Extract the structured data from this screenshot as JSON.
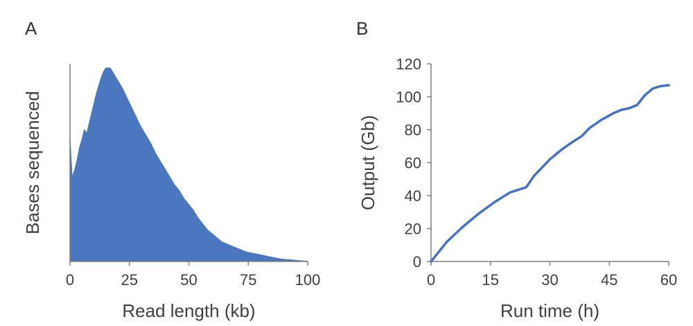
{
  "panels": {
    "a_label": "A",
    "b_label": "B"
  },
  "colors": {
    "bar": "#4a77bf",
    "line": "#4472c4",
    "axis": "#7f7f7f",
    "text": "#404040"
  },
  "chart_data": [
    {
      "type": "area",
      "xlabel": "Read length (kb)",
      "ylabel": "Bases sequenced",
      "xlim": [
        0,
        100
      ],
      "xticks": [
        0,
        25,
        50,
        75,
        100
      ],
      "yticks": [],
      "ylim": [
        0,
        1
      ],
      "grid": false,
      "series": [
        {
          "x": [
            0,
            0.5,
            1,
            2,
            3,
            4,
            5,
            6,
            7,
            8,
            9,
            10,
            11,
            12,
            13,
            14,
            15,
            16,
            17,
            18,
            19,
            20,
            22,
            24,
            26,
            28,
            30,
            32,
            34,
            36,
            38,
            40,
            42,
            44,
            46,
            48,
            50,
            52,
            54,
            56,
            58,
            60,
            62,
            64,
            66,
            68,
            70,
            72,
            74,
            76,
            78,
            80,
            82,
            84,
            86,
            88,
            90,
            92,
            94,
            96,
            98,
            100
          ],
          "values": [
            0.65,
            0.53,
            0.43,
            0.47,
            0.52,
            0.58,
            0.62,
            0.67,
            0.65,
            0.7,
            0.75,
            0.8,
            0.85,
            0.89,
            0.93,
            0.96,
            0.98,
            0.98,
            0.98,
            0.96,
            0.94,
            0.92,
            0.88,
            0.83,
            0.78,
            0.73,
            0.68,
            0.64,
            0.6,
            0.55,
            0.51,
            0.47,
            0.43,
            0.39,
            0.36,
            0.32,
            0.29,
            0.26,
            0.22,
            0.19,
            0.16,
            0.14,
            0.12,
            0.1,
            0.09,
            0.08,
            0.07,
            0.06,
            0.05,
            0.045,
            0.04,
            0.035,
            0.03,
            0.025,
            0.02,
            0.015,
            0.012,
            0.01,
            0.008,
            0.006,
            0.004,
            0.002
          ]
        }
      ]
    },
    {
      "type": "line",
      "xlabel": "Run time (h)",
      "ylabel": "Output (Gb)",
      "xlim": [
        0,
        60
      ],
      "ylim": [
        0,
        120
      ],
      "xticks": [
        0,
        15,
        30,
        45,
        60
      ],
      "yticks": [
        0,
        20,
        40,
        60,
        80,
        100,
        120
      ],
      "grid": false,
      "series": [
        {
          "x": [
            0,
            2,
            4,
            8,
            12,
            16,
            20,
            24,
            26,
            28,
            30,
            33,
            36,
            38,
            40,
            43,
            46,
            48,
            50,
            52,
            54,
            56,
            58,
            60
          ],
          "values": [
            0,
            6,
            12,
            21,
            29,
            36,
            42,
            45,
            52,
            57,
            62,
            68,
            73,
            76,
            81,
            86,
            90,
            92,
            93,
            95,
            101,
            105,
            106.5,
            107
          ]
        }
      ]
    }
  ]
}
